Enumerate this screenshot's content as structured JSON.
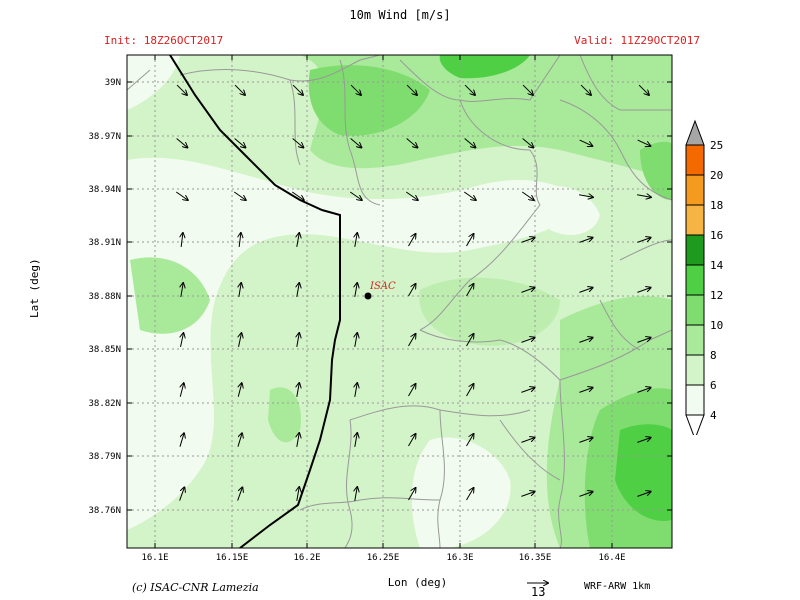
{
  "title": "10m Wind [m/s]",
  "init_label": "Init: 18Z26OCT2017",
  "valid_label": "Valid: 11Z29OCT2017",
  "x_axis_label": "Lon (deg)",
  "y_axis_label": "Lat (deg)",
  "credit": "(c) ISAC-CNR Lamezia",
  "model": "WRF-ARW 1km",
  "reference_vector": "13",
  "marker_label": "ISAC",
  "lon_ticks": [
    "16.1E",
    "16.15E",
    "16.2E",
    "16.25E",
    "16.3E",
    "16.35E",
    "16.4E"
  ],
  "lat_ticks": [
    "39N",
    "38.97N",
    "38.94N",
    "38.91N",
    "38.88N",
    "38.85N",
    "38.82N",
    "38.79N",
    "38.76N"
  ],
  "colorbar_levels": [
    "4",
    "6",
    "8",
    "10",
    "12",
    "14",
    "16",
    "18",
    "20",
    "25"
  ],
  "colorbar_colors": [
    "#f2fbef",
    "#d3f3c8",
    "#a9e99a",
    "#7fdc6e",
    "#4fcf44",
    "#1e9a1e",
    "#f6b444",
    "#f49a1e",
    "#f46a00"
  ],
  "colors": {
    "header_red": "#d82020",
    "grid": "#9a9a9a",
    "border": "#999999"
  }
}
